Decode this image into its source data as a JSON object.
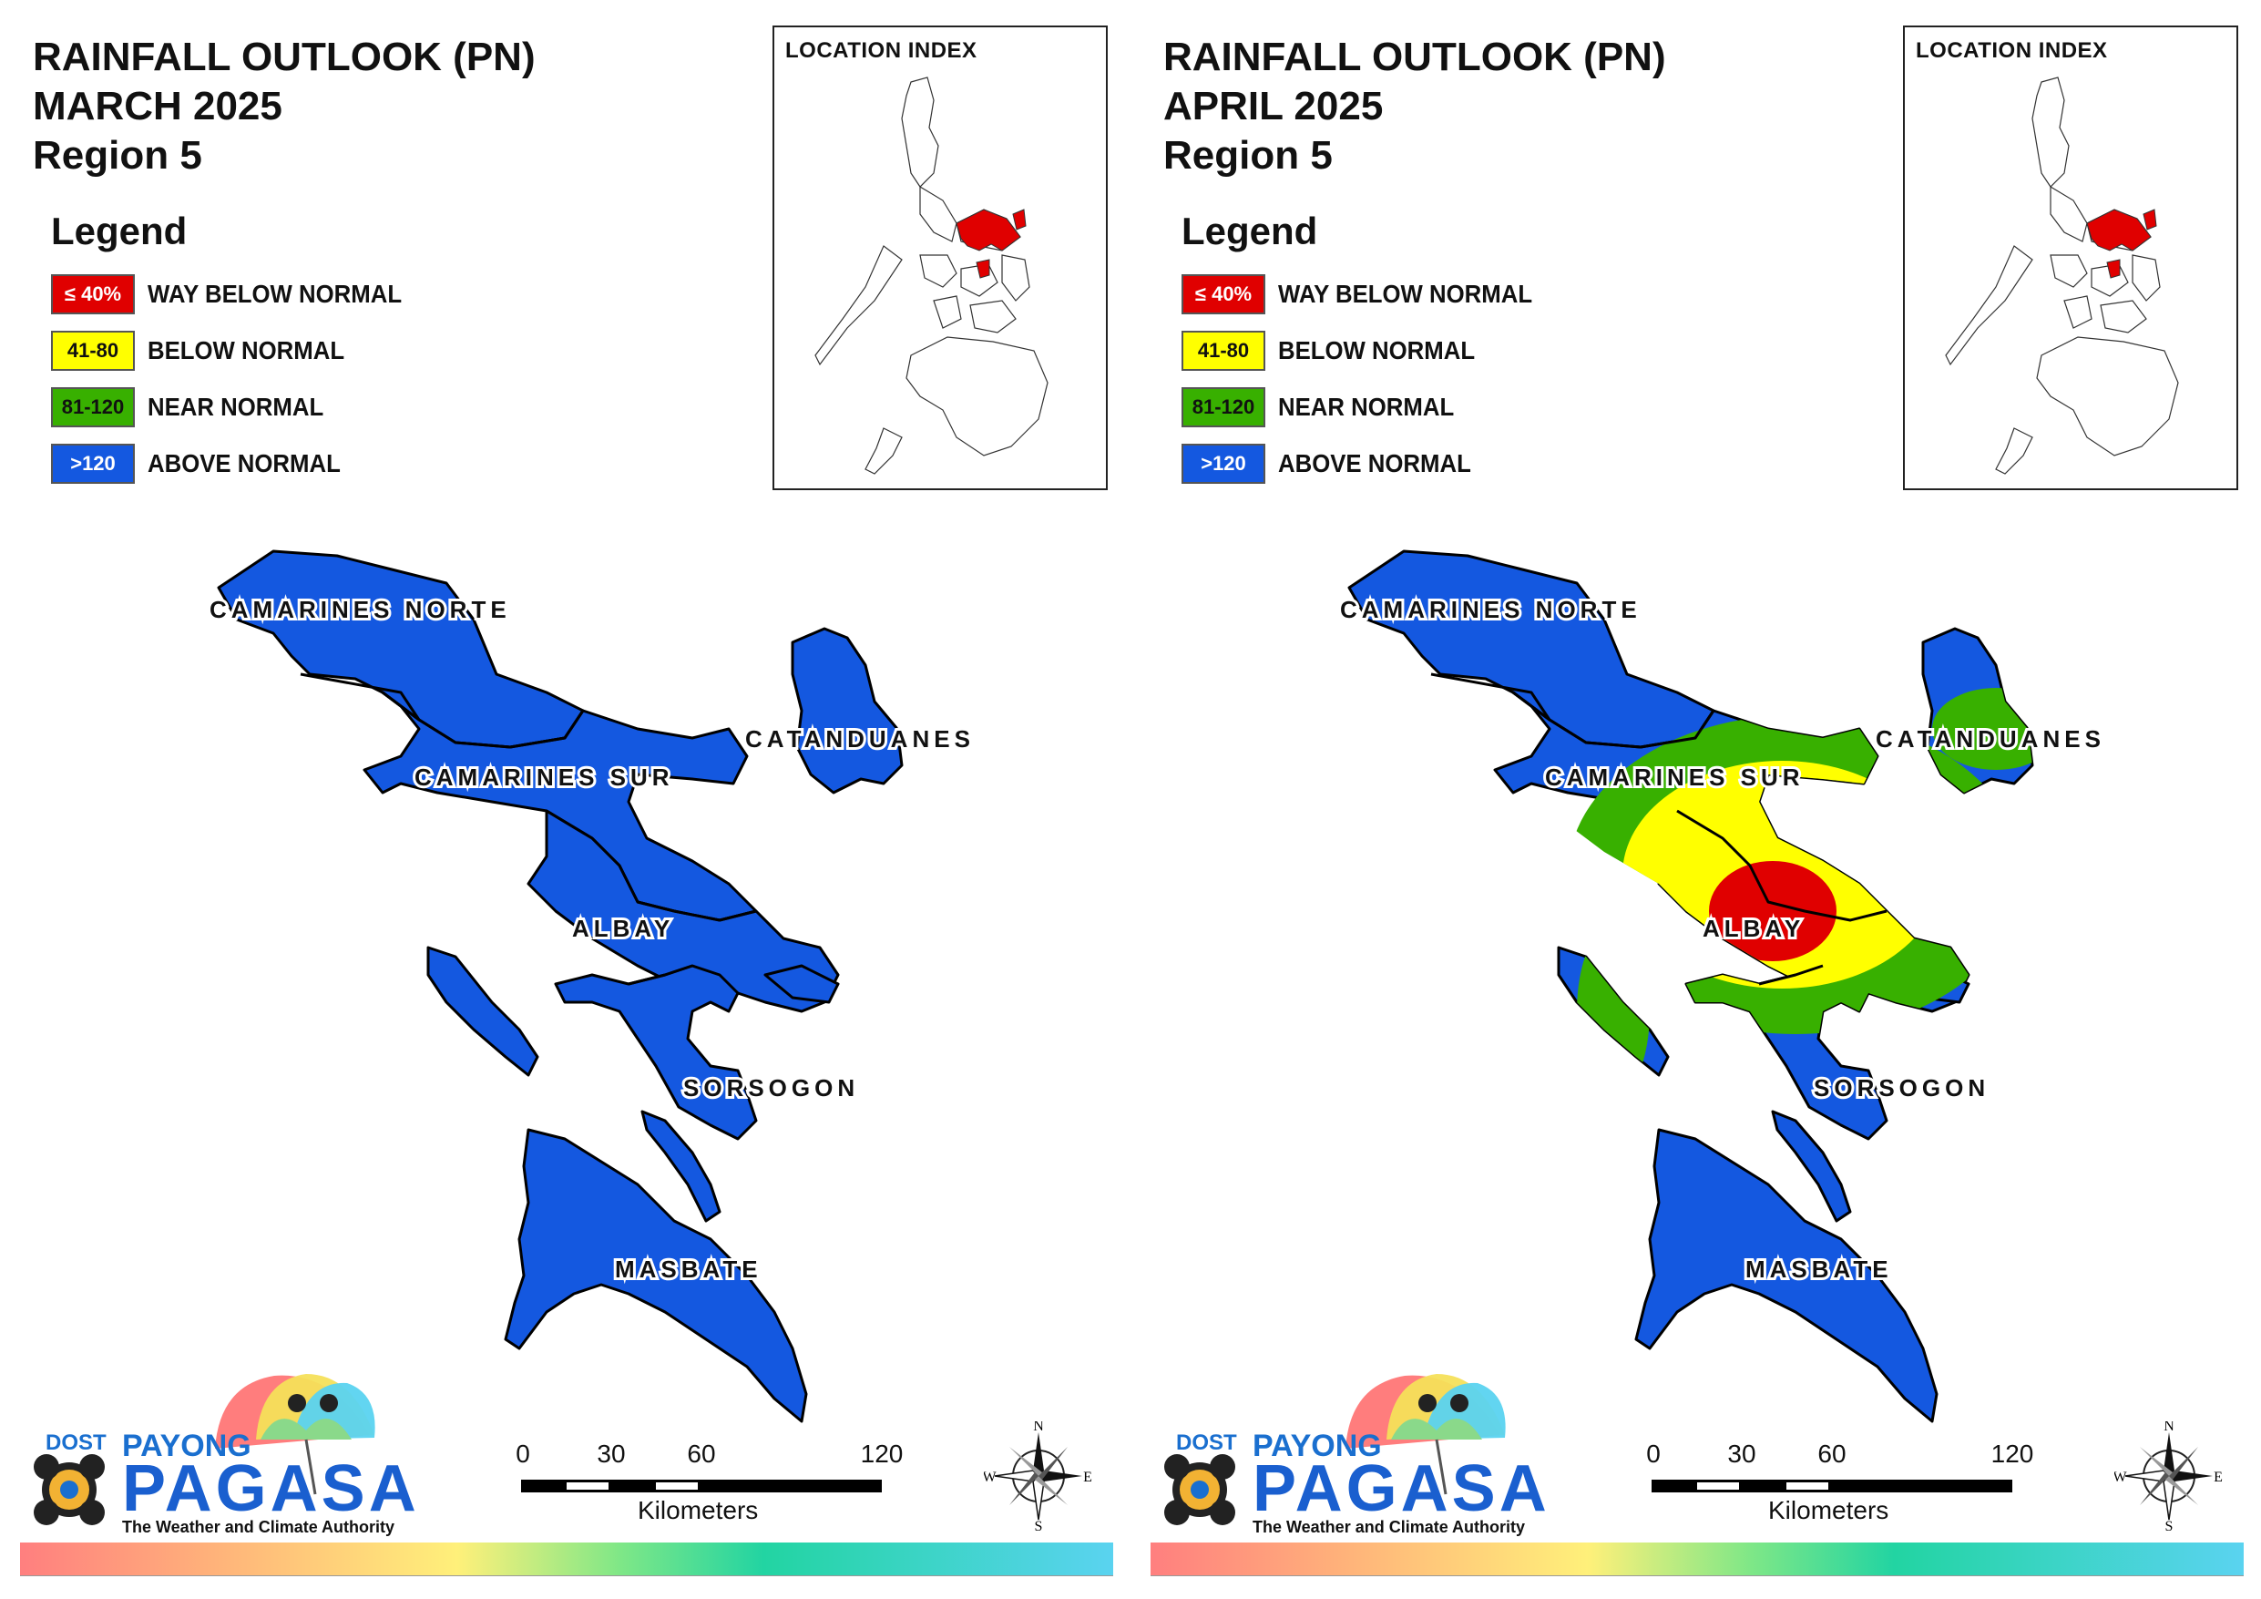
{
  "panels": [
    {
      "title_lines": [
        "RAINFALL OUTLOOK (PN)",
        "MARCH 2025",
        "Region 5"
      ],
      "legend": {
        "heading": "Legend",
        "items": [
          {
            "code": "≤ 40%",
            "label": "WAY BELOW NORMAL",
            "color": "#e00000",
            "text_color": "#ffffff"
          },
          {
            "code": "41-80",
            "label": "BELOW NORMAL",
            "color": "#ffff00",
            "text_color": "#111111"
          },
          {
            "code": "81-120",
            "label": "NEAR NORMAL",
            "color": "#38b000",
            "text_color": "#111111"
          },
          {
            "code": ">120",
            "label": "ABOVE NORMAL",
            "color": "#1458e0",
            "text_color": "#ffffff"
          }
        ]
      },
      "inset_title": "LOCATION INDEX",
      "provinces": {
        "camarines_norte": "CAMARINES NORTE",
        "camarines_sur": "CAMARINES SUR",
        "catanduanes": "CATANDUANES",
        "albay": "ALBAY",
        "sorsogon": "SORSOGON",
        "masbate": "MASBATE"
      },
      "province_categories": {
        "camarines_norte": "ABOVE NORMAL",
        "camarines_sur": "ABOVE NORMAL",
        "catanduanes": "ABOVE NORMAL",
        "albay": "ABOVE NORMAL",
        "sorsogon": "ABOVE NORMAL",
        "masbate": "ABOVE NORMAL"
      },
      "scale": {
        "ticks": [
          "0",
          "30",
          "60",
          "120"
        ],
        "unit": "Kilometers"
      },
      "logo": {
        "dost": "DOST",
        "payong": "PAYONG",
        "pagasa": "PAGASA",
        "tagline": "The Weather and Climate Authority"
      },
      "compass": {
        "n": "N",
        "e": "E",
        "s": "S",
        "w": "W"
      }
    },
    {
      "title_lines": [
        "RAINFALL OUTLOOK (PN)",
        "APRIL 2025",
        "Region 5"
      ],
      "legend": {
        "heading": "Legend",
        "items": [
          {
            "code": "≤ 40%",
            "label": "WAY BELOW NORMAL",
            "color": "#e00000",
            "text_color": "#ffffff"
          },
          {
            "code": "41-80",
            "label": "BELOW NORMAL",
            "color": "#ffff00",
            "text_color": "#111111"
          },
          {
            "code": "81-120",
            "label": "NEAR NORMAL",
            "color": "#38b000",
            "text_color": "#111111"
          },
          {
            "code": ">120",
            "label": "ABOVE NORMAL",
            "color": "#1458e0",
            "text_color": "#ffffff"
          }
        ]
      },
      "inset_title": "LOCATION INDEX",
      "provinces": {
        "camarines_norte": "CAMARINES NORTE",
        "camarines_sur": "CAMARINES SUR",
        "catanduanes": "CATANDUANES",
        "albay": "ALBAY",
        "sorsogon": "SORSOGON",
        "masbate": "MASBATE"
      },
      "province_categories": {
        "camarines_norte": "ABOVE NORMAL",
        "camarines_sur": "ABOVE NORMAL / NEAR NORMAL / BELOW NORMAL",
        "catanduanes": "ABOVE NORMAL / NEAR NORMAL",
        "albay": "WAY BELOW NORMAL / BELOW NORMAL / NEAR NORMAL",
        "sorsogon": "ABOVE NORMAL",
        "masbate": "ABOVE NORMAL"
      },
      "scale": {
        "ticks": [
          "0",
          "30",
          "60",
          "120"
        ],
        "unit": "Kilometers"
      },
      "logo": {
        "dost": "DOST",
        "payong": "PAYONG",
        "pagasa": "PAGASA",
        "tagline": "The Weather and Climate Authority"
      },
      "compass": {
        "n": "N",
        "e": "E",
        "s": "S",
        "w": "W"
      }
    }
  ]
}
